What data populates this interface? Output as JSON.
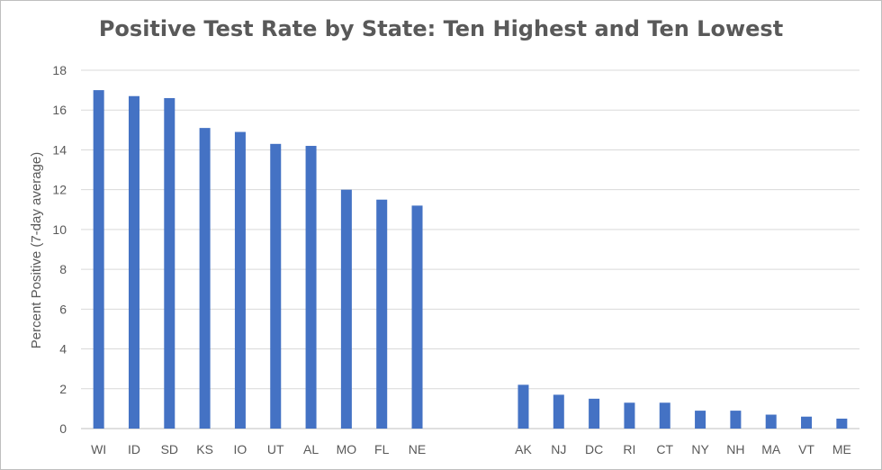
{
  "chart_data": {
    "type": "bar",
    "title": "Positive Test Rate by State: Ten Highest and Ten Lowest",
    "xlabel": "",
    "ylabel": "Percent Positive (7-day average)",
    "ylim": [
      0,
      18
    ],
    "yticks": [
      0,
      2,
      4,
      6,
      8,
      10,
      12,
      14,
      16,
      18
    ],
    "grid": true,
    "bar_color": "#4472c4",
    "categories": [
      "WI",
      "ID",
      "SD",
      "KS",
      "IO",
      "UT",
      "AL",
      "MO",
      "FL",
      "NE",
      "",
      "",
      "AK",
      "NJ",
      "DC",
      "RI",
      "CT",
      "NY",
      "NH",
      "MA",
      "VT",
      "ME"
    ],
    "values": [
      17.0,
      16.7,
      16.6,
      15.1,
      14.9,
      14.3,
      14.2,
      12.0,
      11.5,
      11.2,
      null,
      null,
      2.2,
      1.7,
      1.5,
      1.3,
      1.3,
      0.9,
      0.9,
      0.7,
      0.6,
      0.5
    ]
  }
}
